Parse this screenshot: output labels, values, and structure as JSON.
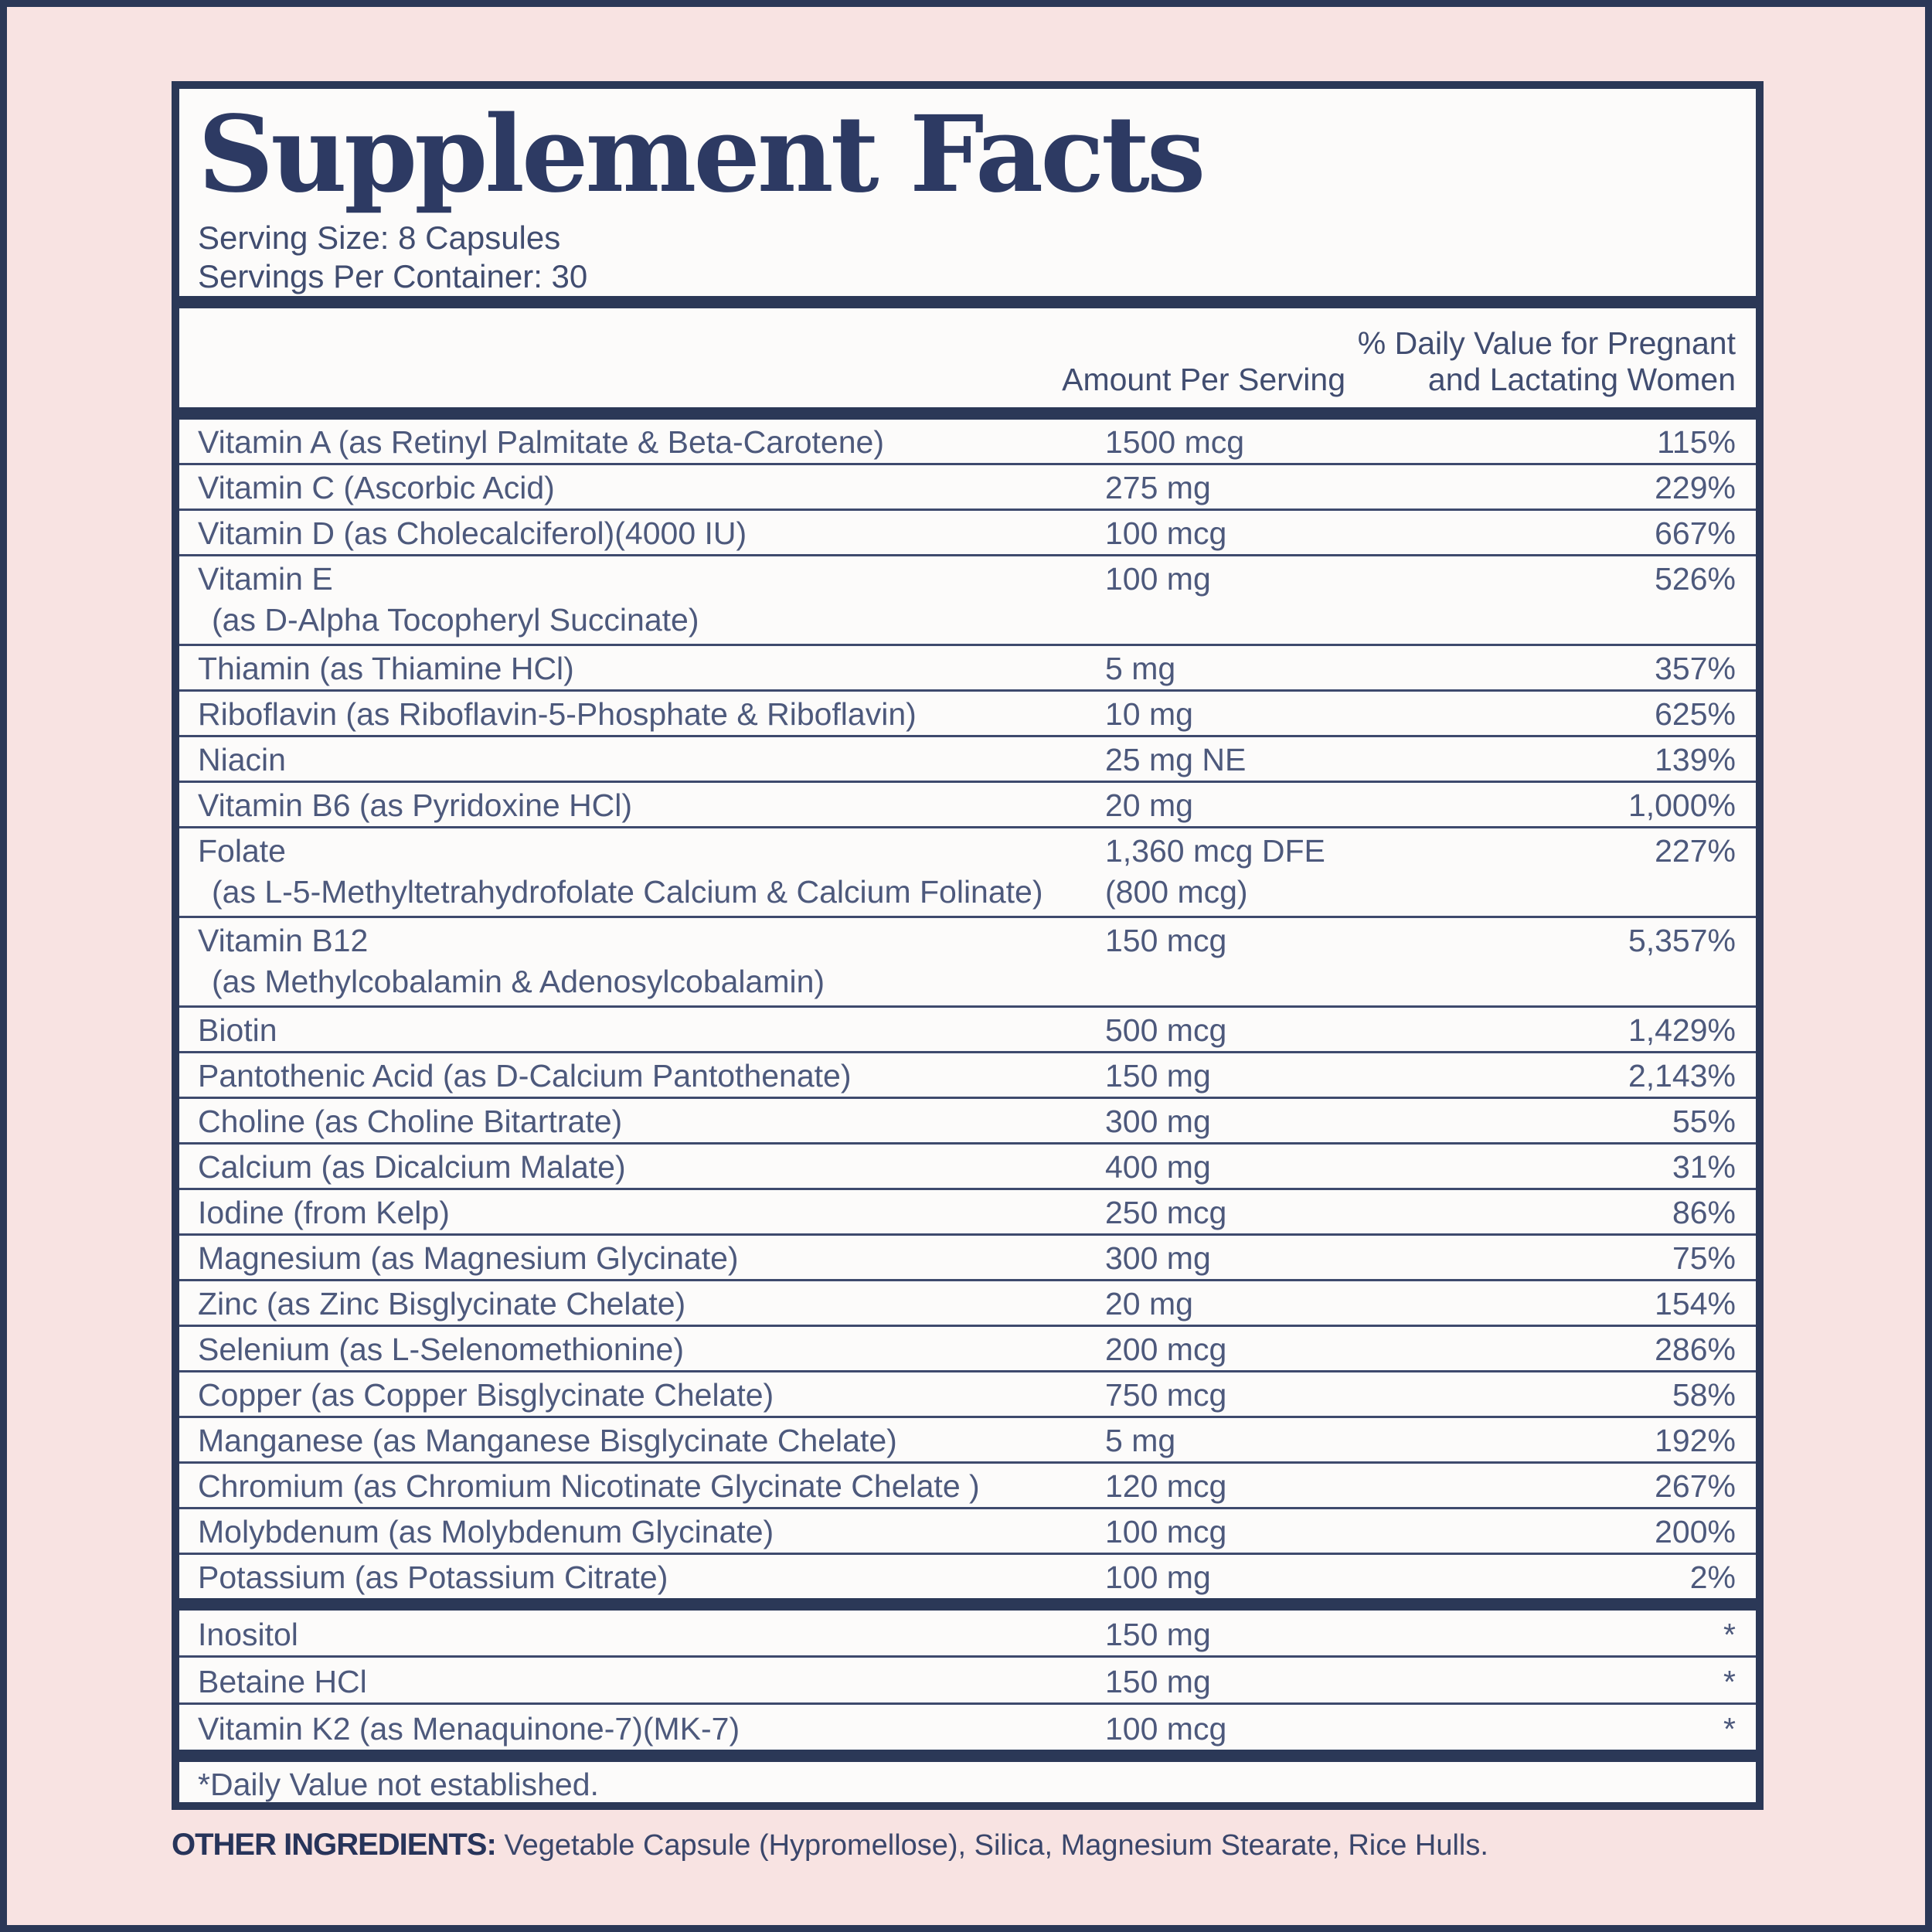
{
  "colors": {
    "background_pink": "#f8e3e2",
    "navy": "#2b3857",
    "title_navy": "#2d3a63",
    "body_text": "#4d597c",
    "panel_bg": "#fcfbfa"
  },
  "label": {
    "title": "Supplement Facts",
    "serving_size": "Serving Size: 8 Capsules",
    "servings_per_container": "Servings Per Container: 30",
    "columns": {
      "amount": "Amount Per Serving",
      "dv_line1": "% Daily Value for Pregnant",
      "dv_line2": "and Lactating Women"
    },
    "rows": [
      {
        "name": "Vitamin A (as Retinyl Palmitate & Beta-Carotene)",
        "amount": "1500 mcg",
        "dv": "115%"
      },
      {
        "name": "Vitamin C (Ascorbic Acid)",
        "amount": "275 mg",
        "dv": "229%"
      },
      {
        "name": "Vitamin D (as Cholecalciferol)(4000 IU)",
        "amount": "100 mcg",
        "dv": "667%"
      },
      {
        "name": "Vitamin E",
        "name2": "(as D-Alpha Tocopheryl Succinate)",
        "amount": "100 mg",
        "dv": "526%"
      },
      {
        "name": "Thiamin (as Thiamine HCl)",
        "amount": "5 mg",
        "dv": "357%"
      },
      {
        "name": "Riboflavin (as Riboflavin-5-Phosphate & Riboflavin)",
        "amount": "10 mg",
        "dv": "625%"
      },
      {
        "name": "Niacin",
        "amount": "25 mg NE",
        "dv": "139%"
      },
      {
        "name": "Vitamin B6 (as Pyridoxine HCl)",
        "amount": "20 mg",
        "dv": "1,000%"
      },
      {
        "name": "Folate",
        "name2": "(as L-5-Methyltetrahydrofolate Calcium & Calcium Folinate)",
        "amount": "1,360 mcg DFE",
        "amount2": "(800 mcg)",
        "dv": "227%"
      },
      {
        "name": "Vitamin B12",
        "name2": "(as Methylcobalamin & Adenosylcobalamin)",
        "amount": "150 mcg",
        "dv": "5,357%"
      },
      {
        "name": "Biotin",
        "amount": "500 mcg",
        "dv": "1,429%"
      },
      {
        "name": "Pantothenic Acid (as D-Calcium Pantothenate)",
        "amount": "150 mg",
        "dv": "2,143%"
      },
      {
        "name": "Choline (as Choline Bitartrate)",
        "amount": "300 mg",
        "dv": "55%"
      },
      {
        "name": "Calcium (as Dicalcium Malate)",
        "amount": "400 mg",
        "dv": "31%"
      },
      {
        "name": "Iodine (from Kelp)",
        "amount": "250 mcg",
        "dv": "86%"
      },
      {
        "name": "Magnesium (as Magnesium Glycinate)",
        "amount": "300 mg",
        "dv": "75%"
      },
      {
        "name": "Zinc (as Zinc Bisglycinate Chelate)",
        "amount": "20 mg",
        "dv": "154%"
      },
      {
        "name": "Selenium (as L-Selenomethionine)",
        "amount": "200 mcg",
        "dv": "286%"
      },
      {
        "name": "Copper (as Copper Bisglycinate Chelate)",
        "amount": "750 mcg",
        "dv": "58%"
      },
      {
        "name": "Manganese (as Manganese Bisglycinate Chelate)",
        "amount": "5 mg",
        "dv": "192%"
      },
      {
        "name": "Chromium (as Chromium Nicotinate Glycinate Chelate )",
        "amount": "120 mcg",
        "dv": "267%"
      },
      {
        "name": "Molybdenum (as Molybdenum Glycinate)",
        "amount": "100 mcg",
        "dv": "200%"
      },
      {
        "name": "Potassium (as Potassium Citrate)",
        "amount": "100 mg",
        "dv": "2%"
      }
    ],
    "extra_rows": [
      {
        "name": "Inositol",
        "amount": "150 mg",
        "dv": "*"
      },
      {
        "name": "Betaine HCl",
        "amount": "150 mg",
        "dv": "*"
      },
      {
        "name": "Vitamin K2 (as Menaquinone-7)(MK-7)",
        "amount": "100 mcg",
        "dv": "*"
      }
    ],
    "footnote": "*Daily Value not established."
  },
  "other_ingredients": {
    "label": "OTHER INGREDIENTS:",
    "text": "Vegetable Capsule (Hypromellose), Silica, Magnesium Stearate, Rice Hulls."
  }
}
